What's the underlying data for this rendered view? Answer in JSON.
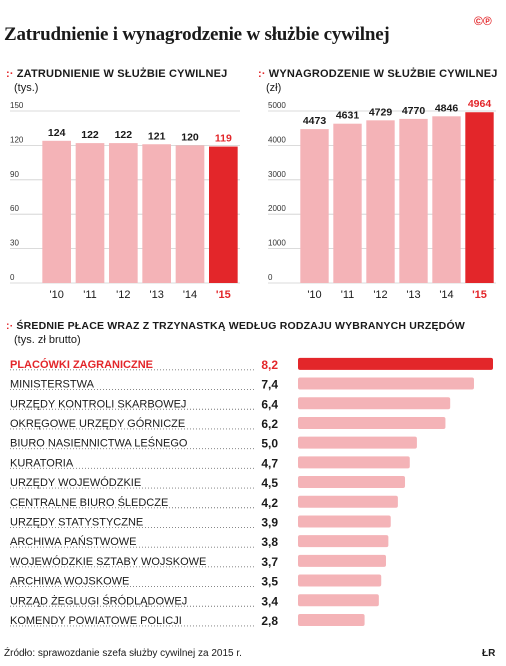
{
  "header": {
    "title": "Zatrudnienie i wynagrodzenie w służbie cywilnej",
    "logo_text": "©℗"
  },
  "colors": {
    "accent": "#e3262a",
    "bar": "#f4b3b7",
    "dots": "#777777"
  },
  "footer": {
    "source": "Źródło: sprawozdanie szefa służby cywilnej za 2015 r.",
    "author": "ŁR"
  },
  "chart_data": [
    {
      "type": "bar",
      "title": "Zatrudnienie w służbie cywilnej",
      "unit": "(tys.)",
      "categories": [
        "'10",
        "'11",
        "'12",
        "'13",
        "'14",
        "'15"
      ],
      "values": [
        124,
        122,
        122,
        121,
        120,
        119
      ],
      "highlight_index": 5,
      "yticks": [
        0,
        30,
        60,
        90,
        120,
        150
      ],
      "ylim": [
        0,
        150
      ],
      "grid": true
    },
    {
      "type": "bar",
      "title": "Wynagrodzenie w służbie cywilnej",
      "unit": "(zł)",
      "categories": [
        "'10",
        "'11",
        "'12",
        "'13",
        "'14",
        "'15"
      ],
      "values": [
        4473,
        4631,
        4729,
        4770,
        4846,
        4964
      ],
      "highlight_index": 5,
      "yticks": [
        0,
        1000,
        2000,
        3000,
        4000,
        5000
      ],
      "ylim": [
        0,
        5000
      ],
      "grid": true
    },
    {
      "type": "bar",
      "orientation": "horizontal",
      "title": "Średnie płace wraz z trzynastką według rodzaju wybranych urzędów",
      "unit": "(tys. zł brutto)",
      "highlight_index": 0,
      "items": [
        {
          "label": "PLACÓWKI ZAGRANICZNE",
          "value": 8.2,
          "display": "8,2"
        },
        {
          "label": "MINISTERSTWA",
          "value": 7.4,
          "display": "7,4"
        },
        {
          "label": "URZĘDY KONTROLI SKARBOWEJ",
          "value": 6.4,
          "display": "6,4"
        },
        {
          "label": "OKRĘGOWE URZĘDY GÓRNICZE",
          "value": 6.2,
          "display": "6,2"
        },
        {
          "label": "BIURO NASIENNICTWA LEŚNEGO",
          "value": 5.0,
          "display": "5,0"
        },
        {
          "label": "KURATORIA",
          "value": 4.7,
          "display": "4,7"
        },
        {
          "label": "URZĘDY WOJEWÓDZKIE",
          "value": 4.5,
          "display": "4,5"
        },
        {
          "label": "CENTRALNE BIURO ŚLEDCZE",
          "value": 4.2,
          "display": "4,2"
        },
        {
          "label": "URZĘDY STATYSTYCZNE",
          "value": 3.9,
          "display": "3,9"
        },
        {
          "label": "ARCHIWA PAŃSTWOWE",
          "value": 3.8,
          "display": "3,8"
        },
        {
          "label": "WOJEWÓDZKIE SZTABY WOJSKOWE",
          "value": 3.7,
          "display": "3,7"
        },
        {
          "label": "ARCHIWA WOJSKOWE",
          "value": 3.5,
          "display": "3,5"
        },
        {
          "label": "URZĄD ŻEGLUGI ŚRÓDLĄDOWEJ",
          "value": 3.4,
          "display": "3,4"
        },
        {
          "label": "KOMENDY POWIATOWE POLICJI",
          "value": 2.8,
          "display": "2,8"
        }
      ]
    }
  ]
}
